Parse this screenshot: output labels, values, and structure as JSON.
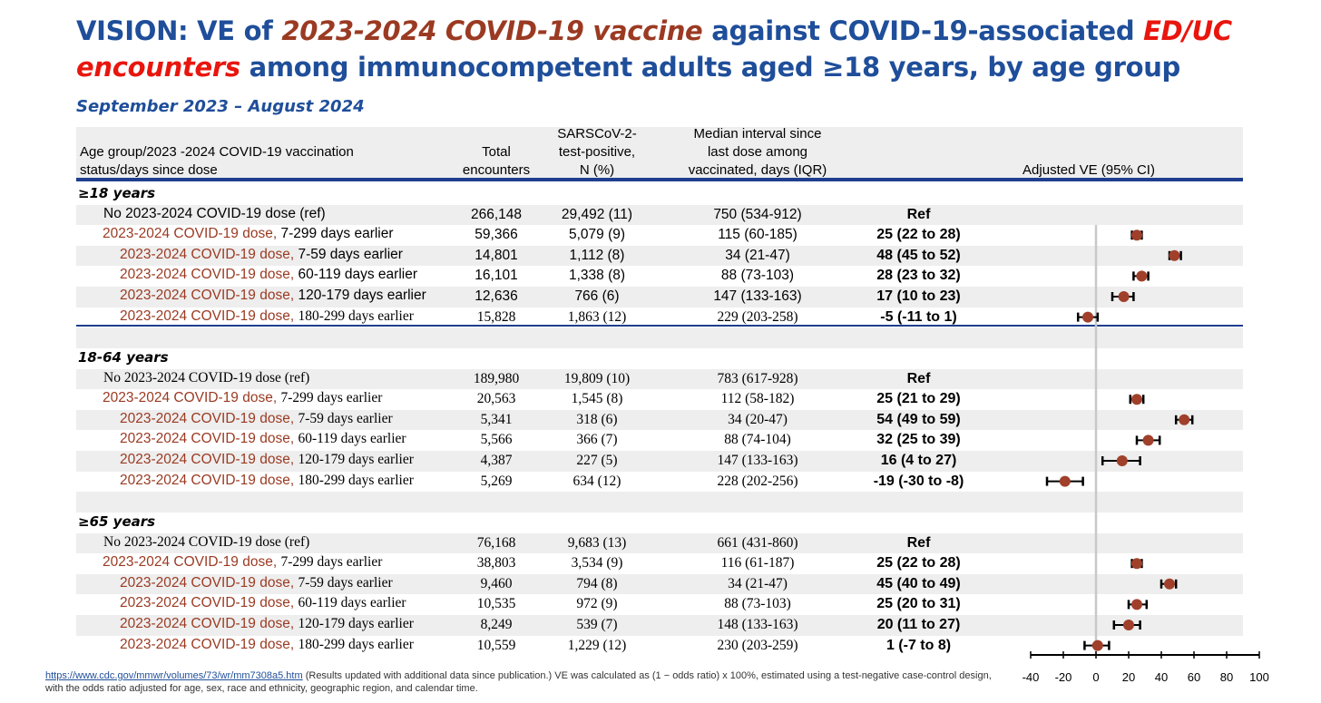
{
  "title": {
    "part1": "VISION: VE of ",
    "vaccine": "2023-2024 COVID-19 vaccine",
    "part2": " against COVID-19-associated ",
    "encounter1": "ED/UC",
    "encounter2": "encounters",
    "part3": " among immunocompetent adults aged ≥18 years, by age group"
  },
  "subtitle": "September 2023 – August 2024",
  "headers": {
    "age_group_line1": "Age group/2023 -2024 COVID-19 vaccination",
    "age_group_line2": "status/days since dose",
    "total_line1": "Total",
    "total_line2": "encounters",
    "pos_line1": "SARSCoV-2-",
    "pos_line2": "test-positive,",
    "pos_line3": "N (%)",
    "interval_line1": "Median interval since",
    "interval_line2": "last dose among",
    "interval_line3": "vaccinated, days (IQR)",
    "ve": "Adjusted VE (95% CI)"
  },
  "dose_prefix": "2023-2024 COVID-19 dose,",
  "groups": [
    {
      "label": "≥18 years",
      "rows": [
        {
          "label": "No 2023-2024 COVID-19 dose (ref)",
          "total": "266,148",
          "positive": "29,492 (11)",
          "interval": "750 (534-912)",
          "ve": "Ref"
        },
        {
          "label": "7-299 days earlier",
          "total": "59,366",
          "positive": "5,079 (9)",
          "interval": "115 (60-185)",
          "ve": "25 (22 to 28)"
        },
        {
          "label": "7-59 days earlier",
          "total": "14,801",
          "positive": "1,112 (8)",
          "interval": "34 (21-47)",
          "ve": "48 (45 to 52)"
        },
        {
          "label": "60-119 days earlier",
          "total": "16,101",
          "positive": "1,338 (8)",
          "interval": "88 (73-103)",
          "ve": "28 (23 to 32)"
        },
        {
          "label": "120-179 days earlier",
          "total": "12,636",
          "positive": "766 (6)",
          "interval": "147 (133-163)",
          "ve": "17 (10 to 23)"
        },
        {
          "label": "180-299 days earlier",
          "total": "15,828",
          "positive": "1,863 (12)",
          "interval": "229 (203-258)",
          "ve": "-5 (-11 to 1)"
        }
      ]
    },
    {
      "label": "18-64 years",
      "rows": [
        {
          "label": "No 2023-2024 COVID-19 dose (ref)",
          "total": "189,980",
          "positive": "19,809 (10)",
          "interval": "783 (617-928)",
          "ve": "Ref"
        },
        {
          "label": "7-299 days earlier",
          "total": "20,563",
          "positive": "1,545 (8)",
          "interval": "112 (58-182)",
          "ve": "25 (21 to 29)"
        },
        {
          "label": "7-59 days earlier",
          "total": "5,341",
          "positive": "318 (6)",
          "interval": "34 (20-47)",
          "ve": "54 (49 to 59)"
        },
        {
          "label": "60-119 days earlier",
          "total": "5,566",
          "positive": "366 (7)",
          "interval": "88 (74-104)",
          "ve": "32 (25 to 39)"
        },
        {
          "label": "120-179 days earlier",
          "total": "4,387",
          "positive": "227 (5)",
          "interval": "147 (133-163)",
          "ve": "16 (4 to 27)"
        },
        {
          "label": "180-299 days earlier",
          "total": "5,269",
          "positive": "634 (12)",
          "interval": "228 (202-256)",
          "ve": "-19 (-30 to -8)"
        }
      ]
    },
    {
      "label": "≥65 years",
      "rows": [
        {
          "label": "No 2023-2024 COVID-19 dose (ref)",
          "total": "76,168",
          "positive": "9,683 (13)",
          "interval": "661 (431-860)",
          "ve": "Ref"
        },
        {
          "label": "7-299 days earlier",
          "total": "38,803",
          "positive": "3,534 (9)",
          "interval": "116 (61-187)",
          "ve": "25 (22 to 28)"
        },
        {
          "label": "7-59 days earlier",
          "total": "9,460",
          "positive": "794 (8)",
          "interval": "34 (21-47)",
          "ve": "45 (40 to 49)"
        },
        {
          "label": "60-119 days earlier",
          "total": "10,535",
          "positive": "972 (9)",
          "interval": "88 (73-103)",
          "ve": "25 (20 to 31)"
        },
        {
          "label": "120-179 days earlier",
          "total": "8,249",
          "positive": "539 (7)",
          "interval": "148 (133-163)",
          "ve": "20 (11 to 27)"
        },
        {
          "label": "180-299 days earlier",
          "total": "10,559",
          "positive": "1,229 (12)",
          "interval": "230 (203-259)",
          "ve": "1 (-7 to 8)"
        }
      ]
    }
  ],
  "footnote": {
    "link": "https://www.cdc.gov/mmwr/volumes/73/wr/mm7308a5.htm",
    "text": " (Results updated with additional data since publication.) VE was calculated as (1 − odds ratio) x 100%, estimated using a test-negative case-control design, with the odds ratio adjusted for age, sex, race and ethnicity, geographic region, and calendar time."
  },
  "chart_data": {
    "type": "forest",
    "title": "Adjusted VE (95% CI)",
    "xlim": [
      -40,
      100
    ],
    "xticks": [
      -40,
      -20,
      0,
      20,
      40,
      60,
      80,
      100
    ],
    "reference_line": 0,
    "colors": {
      "point": "#a0402a",
      "whisker": "#000000",
      "ref_line": "#c8c8c8"
    },
    "series": [
      {
        "name": "≥18 years",
        "points": [
          {
            "label": "7-299 days earlier",
            "ve": 25,
            "lo": 22,
            "hi": 28
          },
          {
            "label": "7-59 days earlier",
            "ve": 48,
            "lo": 45,
            "hi": 52
          },
          {
            "label": "60-119 days earlier",
            "ve": 28,
            "lo": 23,
            "hi": 32
          },
          {
            "label": "120-179 days earlier",
            "ve": 17,
            "lo": 10,
            "hi": 23
          },
          {
            "label": "180-299 days earlier",
            "ve": -5,
            "lo": -11,
            "hi": 1
          }
        ]
      },
      {
        "name": "18-64 years",
        "points": [
          {
            "label": "7-299 days earlier",
            "ve": 25,
            "lo": 21,
            "hi": 29
          },
          {
            "label": "7-59 days earlier",
            "ve": 54,
            "lo": 49,
            "hi": 59
          },
          {
            "label": "60-119 days earlier",
            "ve": 32,
            "lo": 25,
            "hi": 39
          },
          {
            "label": "120-179 days earlier",
            "ve": 16,
            "lo": 4,
            "hi": 27
          },
          {
            "label": "180-299 days earlier",
            "ve": -19,
            "lo": -30,
            "hi": -8
          }
        ]
      },
      {
        "name": "≥65 years",
        "points": [
          {
            "label": "7-299 days earlier",
            "ve": 25,
            "lo": 22,
            "hi": 28
          },
          {
            "label": "7-59 days earlier",
            "ve": 45,
            "lo": 40,
            "hi": 49
          },
          {
            "label": "60-119 days earlier",
            "ve": 25,
            "lo": 20,
            "hi": 31
          },
          {
            "label": "120-179 days earlier",
            "ve": 20,
            "lo": 11,
            "hi": 27
          },
          {
            "label": "180-299 days earlier",
            "ve": 1,
            "lo": -7,
            "hi": 8
          }
        ]
      }
    ]
  }
}
